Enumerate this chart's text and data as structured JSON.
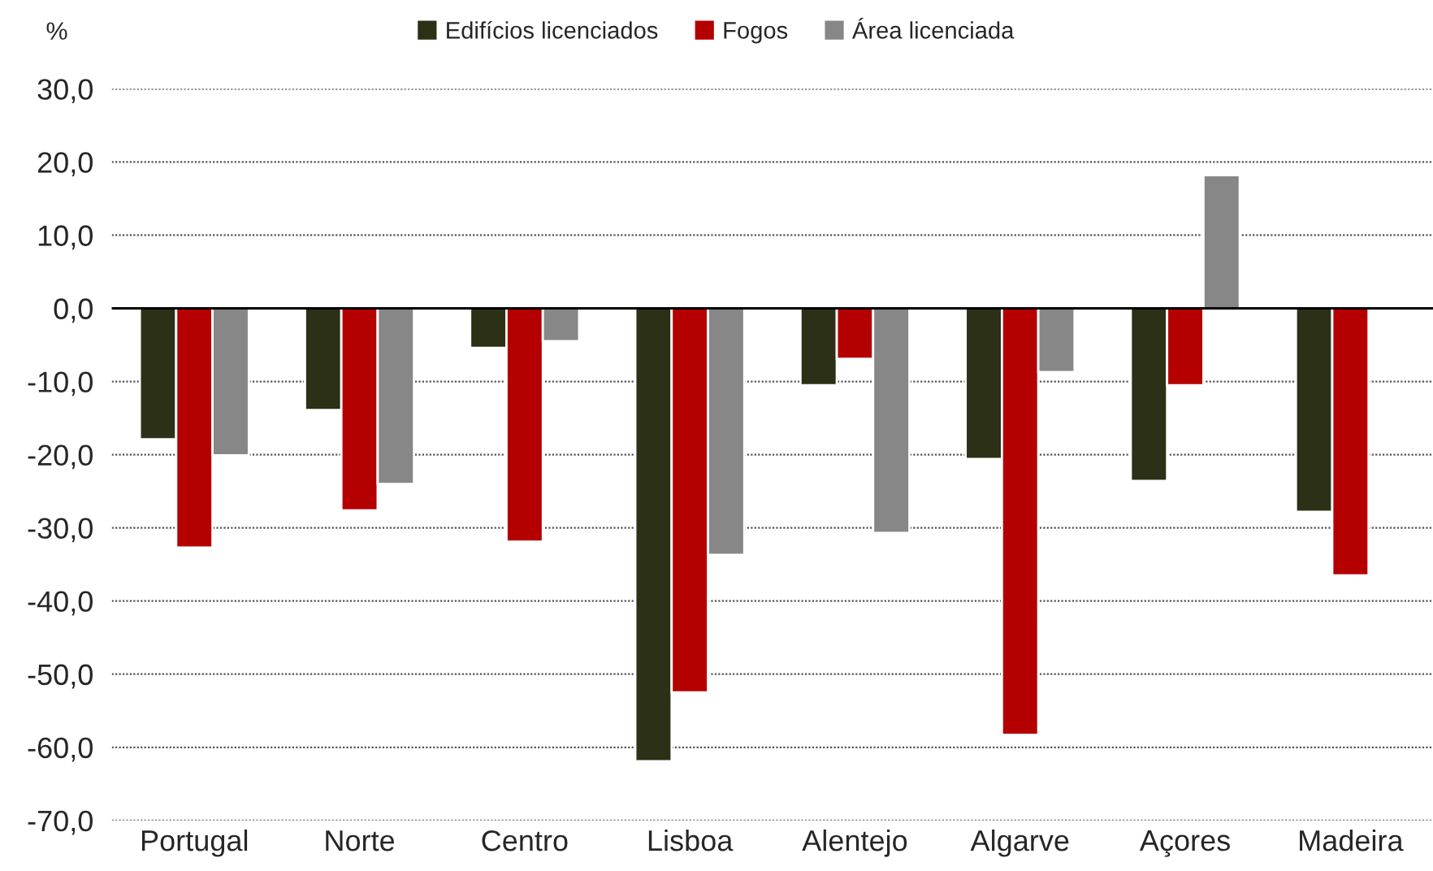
{
  "chart_data": {
    "type": "bar",
    "ylabel": "%",
    "categories": [
      "Portugal",
      "Norte",
      "Centro",
      "Lisboa",
      "Alentejo",
      "Algarve",
      "Açores",
      "Madeira"
    ],
    "series": [
      {
        "name": "Edifícios licenciados",
        "color": "#2b3016",
        "values": [
          -17.9,
          -13.9,
          -5.4,
          -61.9,
          -10.5,
          -20.6,
          -23.6,
          -27.8
        ]
      },
      {
        "name": "Fogos",
        "color": "#b50000",
        "values": [
          -32.7,
          -27.6,
          -31.9,
          -52.5,
          -6.9,
          -58.3,
          -10.5,
          -36.5
        ]
      },
      {
        "name": "Área licenciada",
        "color": "#878787",
        "values": [
          -20.1,
          -24.0,
          -4.5,
          -33.7,
          -30.7,
          -8.7,
          18.2,
          null
        ]
      }
    ],
    "ylim": [
      -70,
      30
    ],
    "yticks": [
      {
        "value": 30,
        "label": "30,0"
      },
      {
        "value": 20,
        "label": "20,0"
      },
      {
        "value": 10,
        "label": "10,0"
      },
      {
        "value": 0,
        "label": "0,0"
      },
      {
        "value": -10,
        "label": "-10,0"
      },
      {
        "value": -20,
        "label": "-20,0"
      },
      {
        "value": -30,
        "label": "-30,0"
      },
      {
        "value": -40,
        "label": "-40,0"
      },
      {
        "value": -50,
        "label": "-50,0"
      },
      {
        "value": -60,
        "label": "-60,0"
      },
      {
        "value": -70,
        "label": "-70,0"
      }
    ],
    "ref_lines": [
      {
        "axis": "y",
        "value": 0,
        "label": null,
        "color": "#000000",
        "line_style": "solid"
      }
    ],
    "grid": "y",
    "legend": "top"
  }
}
